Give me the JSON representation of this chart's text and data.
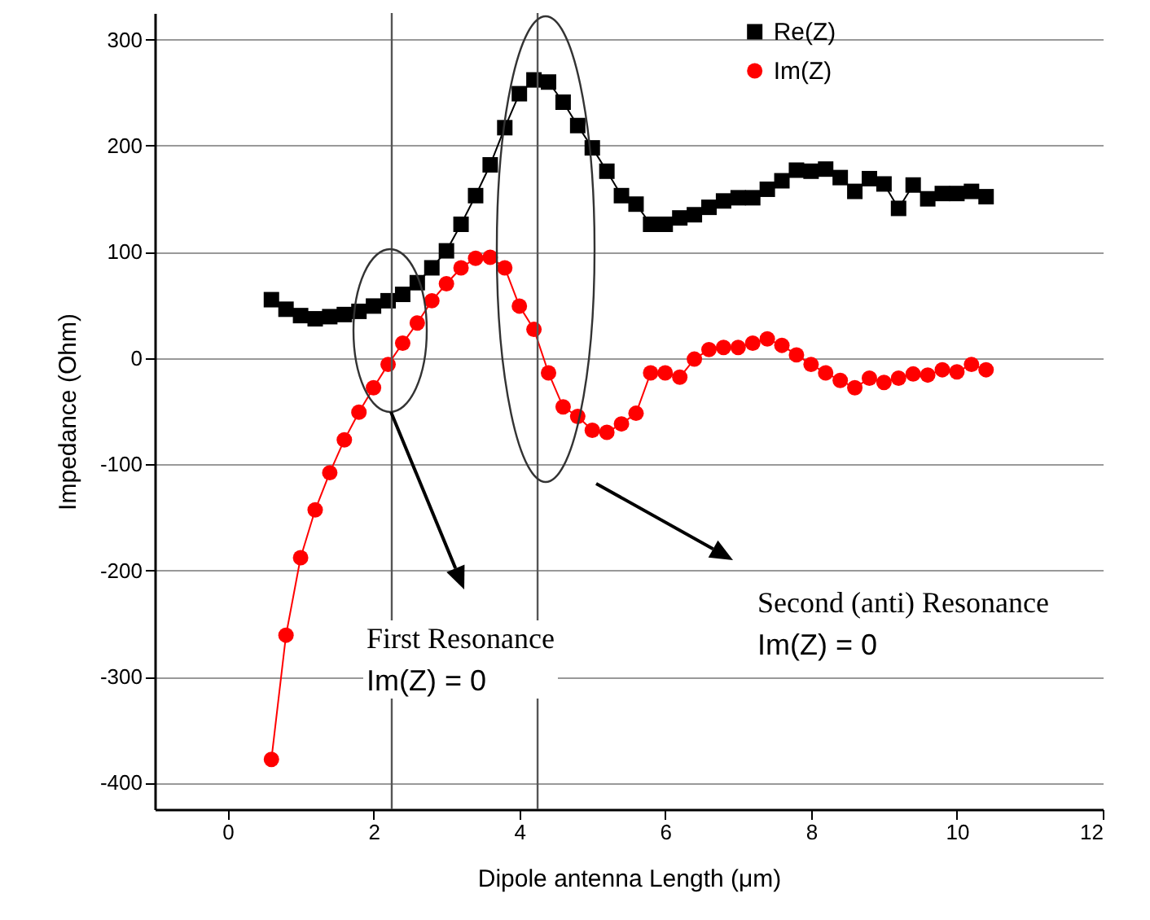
{
  "chart_data": {
    "type": "line",
    "xlabel": "Dipole antenna Length (μm)",
    "ylabel": "Impedance (Ohm)",
    "x": [
      0.6,
      0.8,
      1.0,
      1.2,
      1.4,
      1.6,
      1.8,
      2.0,
      2.2,
      2.4,
      2.6,
      2.8,
      3.0,
      3.2,
      3.4,
      3.6,
      3.8,
      4.0,
      4.2,
      4.4,
      4.6,
      4.8,
      5.0,
      5.2,
      5.4,
      5.6,
      5.8,
      6.0,
      6.2,
      6.4,
      6.6,
      6.8,
      7.0,
      7.2,
      7.4,
      7.6,
      7.8,
      8.0,
      8.2,
      8.4,
      8.6,
      8.8,
      9.0,
      9.2,
      9.4,
      9.6,
      9.8,
      10.0,
      10.2,
      10.4
    ],
    "series": [
      {
        "name": "Re(Z)",
        "color": "#000000",
        "marker": "square",
        "values": [
          55,
          46,
          40,
          37,
          39,
          41,
          44,
          49,
          54,
          60,
          71,
          85,
          101,
          126,
          153,
          182,
          217,
          249,
          262,
          260,
          241,
          219,
          198,
          176,
          153,
          145,
          126,
          126,
          132,
          135,
          142,
          148,
          151,
          151,
          159,
          167,
          177,
          176,
          178,
          170,
          157,
          169,
          164,
          141,
          163,
          150,
          155,
          155,
          157,
          152
        ]
      },
      {
        "name": "Im(Z)",
        "color": "#ff0000",
        "marker": "circle",
        "values": [
          -378,
          -261,
          -188,
          -143,
          -108,
          -77,
          -51,
          -28,
          -6,
          14,
          33,
          54,
          70,
          85,
          94,
          95,
          85,
          49,
          27,
          -14,
          -46,
          -55,
          -68,
          -70,
          -62,
          -52,
          -14,
          -14,
          -18,
          -1,
          8,
          10,
          10,
          14,
          18,
          12,
          3,
          -6,
          -14,
          -21,
          -28,
          -19,
          -23,
          -19,
          -15,
          -16,
          -11,
          -13,
          -6,
          -11
        ]
      }
    ],
    "xlim": [
      -1,
      12
    ],
    "xticks": [
      0,
      2,
      4,
      6,
      8,
      10,
      12
    ],
    "ylim": [
      -425,
      325
    ],
    "yticks": [
      -400,
      -300,
      -200,
      -100,
      0,
      100,
      200,
      300
    ],
    "grid": "y",
    "legend": "top right",
    "ref_lines": [
      {
        "axis": "x",
        "value": 2.25,
        "color": "#555555"
      },
      {
        "axis": "x",
        "value": 4.25,
        "color": "#555555"
      }
    ],
    "annotations": [
      "First Resonance\nIm(Z) = 0",
      "Second (anti) Resonance\nIm(Z) = 0"
    ]
  }
}
